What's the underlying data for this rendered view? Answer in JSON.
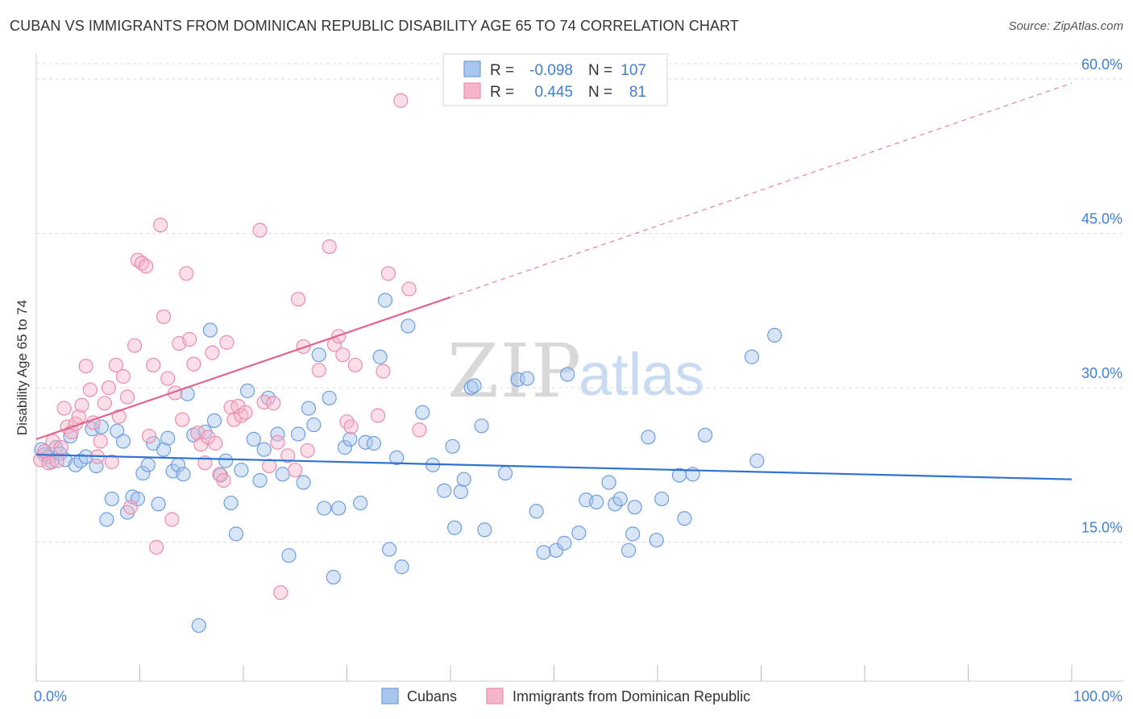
{
  "header": {
    "title": "CUBAN VS IMMIGRANTS FROM DOMINICAN REPUBLIC DISABILITY AGE 65 TO 74 CORRELATION CHART",
    "source": "Source: ZipAtlas.com"
  },
  "watermark": {
    "zip": "ZIP",
    "atlas": "atlas"
  },
  "colors": {
    "blue_fill": "#a9c6ee",
    "blue_stroke": "#6d9ee0",
    "blue_line": "#2e73d2",
    "pink_fill": "#f6b6ca",
    "pink_stroke": "#ec8cab",
    "pink_line": "#e0648f",
    "axis_text": "#3f7fd6",
    "grid": "#dcdcdc"
  },
  "legend": {
    "rows": [
      {
        "r_label": "R =",
        "r_value": "-0.098",
        "n_label": "N =",
        "n_value": "107"
      },
      {
        "r_label": "R =",
        "r_value": "0.445",
        "n_label": "N =",
        "n_value": "81"
      }
    ]
  },
  "bottom_legend": [
    "Cubans",
    "Immigrants from Dominican Republic"
  ],
  "chart_data": {
    "type": "scatter",
    "xlabel": "",
    "ylabel": "Disability Age 65 to 74",
    "xlim": [
      0,
      100
    ],
    "ylim": [
      1.5,
      62.5
    ],
    "x_tick_labels": [
      {
        "value": 0,
        "label": "0.0%"
      },
      {
        "value": 100,
        "label": "100.0%"
      }
    ],
    "y_tick_labels": [
      {
        "value": 15,
        "label": "15.0%"
      },
      {
        "value": 30,
        "label": "30.0%"
      },
      {
        "value": 45,
        "label": "45.0%"
      },
      {
        "value": 60,
        "label": "60.0%"
      }
    ],
    "grid": true,
    "legend_position": "top-center",
    "series": [
      {
        "name": "Cubans",
        "trend": {
          "x": [
            0,
            100
          ],
          "y": [
            23.5,
            21.1
          ]
        },
        "points": [
          [
            0.5,
            24.0
          ],
          [
            0.8,
            23.5
          ],
          [
            1.2,
            23.3
          ],
          [
            1.5,
            22.8
          ],
          [
            1.9,
            24.2
          ],
          [
            2.3,
            23.6
          ],
          [
            2.8,
            23.0
          ],
          [
            3.3,
            25.3
          ],
          [
            3.8,
            22.5
          ],
          [
            4.3,
            22.9
          ],
          [
            4.8,
            23.3
          ],
          [
            5.4,
            26.0
          ],
          [
            5.8,
            22.4
          ],
          [
            6.3,
            26.2
          ],
          [
            6.8,
            17.2
          ],
          [
            7.3,
            19.2
          ],
          [
            7.8,
            25.8
          ],
          [
            8.4,
            24.8
          ],
          [
            8.8,
            17.9
          ],
          [
            9.3,
            19.4
          ],
          [
            9.8,
            19.2
          ],
          [
            10.3,
            21.7
          ],
          [
            10.8,
            22.5
          ],
          [
            11.3,
            24.6
          ],
          [
            11.8,
            18.7
          ],
          [
            12.3,
            24.0
          ],
          [
            12.7,
            25.1
          ],
          [
            13.2,
            21.9
          ],
          [
            13.7,
            22.5
          ],
          [
            14.2,
            21.6
          ],
          [
            14.6,
            29.4
          ],
          [
            15.2,
            25.4
          ],
          [
            15.7,
            6.9
          ],
          [
            16.3,
            25.7
          ],
          [
            16.8,
            35.6
          ],
          [
            17.2,
            26.8
          ],
          [
            17.8,
            21.5
          ],
          [
            18.3,
            22.9
          ],
          [
            18.8,
            18.8
          ],
          [
            19.3,
            15.8
          ],
          [
            19.8,
            22.0
          ],
          [
            20.4,
            29.7
          ],
          [
            21.0,
            25.0
          ],
          [
            21.6,
            21.0
          ],
          [
            22.0,
            24.0
          ],
          [
            22.4,
            29.0
          ],
          [
            23.3,
            25.5
          ],
          [
            23.8,
            21.6
          ],
          [
            24.4,
            13.7
          ],
          [
            25.3,
            25.5
          ],
          [
            25.8,
            20.8
          ],
          [
            26.3,
            28.0
          ],
          [
            26.8,
            26.4
          ],
          [
            27.3,
            33.2
          ],
          [
            27.8,
            18.3
          ],
          [
            28.3,
            29.0
          ],
          [
            28.7,
            11.6
          ],
          [
            29.2,
            18.3
          ],
          [
            29.8,
            24.2
          ],
          [
            30.3,
            25.0
          ],
          [
            31.3,
            18.8
          ],
          [
            31.8,
            24.7
          ],
          [
            32.6,
            24.6
          ],
          [
            33.2,
            33.0
          ],
          [
            33.7,
            38.5
          ],
          [
            34.1,
            14.3
          ],
          [
            34.8,
            23.2
          ],
          [
            35.3,
            12.6
          ],
          [
            35.9,
            36.0
          ],
          [
            37.3,
            27.6
          ],
          [
            38.3,
            22.5
          ],
          [
            39.4,
            20.0
          ],
          [
            40.2,
            24.3
          ],
          [
            40.4,
            16.4
          ],
          [
            41.0,
            19.9
          ],
          [
            41.3,
            21.1
          ],
          [
            42.0,
            30.0
          ],
          [
            42.3,
            30.2
          ],
          [
            43.0,
            26.3
          ],
          [
            43.3,
            16.2
          ],
          [
            45.3,
            21.7
          ],
          [
            46.5,
            30.8
          ],
          [
            47.4,
            30.9
          ],
          [
            48.3,
            18.0
          ],
          [
            49.0,
            14.0
          ],
          [
            50.2,
            14.2
          ],
          [
            51.0,
            14.9
          ],
          [
            51.3,
            31.3
          ],
          [
            52.4,
            15.9
          ],
          [
            53.1,
            19.1
          ],
          [
            54.1,
            18.9
          ],
          [
            55.3,
            20.8
          ],
          [
            55.9,
            18.7
          ],
          [
            56.4,
            19.2
          ],
          [
            57.2,
            14.2
          ],
          [
            57.6,
            15.8
          ],
          [
            57.8,
            18.4
          ],
          [
            59.1,
            25.2
          ],
          [
            59.9,
            15.2
          ],
          [
            60.4,
            19.2
          ],
          [
            62.1,
            21.5
          ],
          [
            62.6,
            17.3
          ],
          [
            63.4,
            21.6
          ],
          [
            64.6,
            25.4
          ],
          [
            69.1,
            33.0
          ],
          [
            69.6,
            22.9
          ],
          [
            71.3,
            35.1
          ]
        ]
      },
      {
        "name": "Immigrants from Dominican Republic",
        "trend": {
          "x": [
            0,
            40
          ],
          "y": [
            25.0,
            38.8
          ]
        },
        "trend_extension": {
          "x": [
            40,
            100
          ],
          "y": [
            38.8,
            59.6
          ]
        },
        "points": [
          [
            0.4,
            23.0
          ],
          [
            0.8,
            23.8
          ],
          [
            1.2,
            22.7
          ],
          [
            1.6,
            24.8
          ],
          [
            2.0,
            22.9
          ],
          [
            2.4,
            24.2
          ],
          [
            2.7,
            28.0
          ],
          [
            3.0,
            26.2
          ],
          [
            3.4,
            25.7
          ],
          [
            3.8,
            26.5
          ],
          [
            4.1,
            27.2
          ],
          [
            4.4,
            28.3
          ],
          [
            4.8,
            32.1
          ],
          [
            5.2,
            29.8
          ],
          [
            5.5,
            26.6
          ],
          [
            5.9,
            23.3
          ],
          [
            6.2,
            24.8
          ],
          [
            6.6,
            28.5
          ],
          [
            7.0,
            30.0
          ],
          [
            7.3,
            22.8
          ],
          [
            7.7,
            32.2
          ],
          [
            8.0,
            27.2
          ],
          [
            8.4,
            31.1
          ],
          [
            8.8,
            29.1
          ],
          [
            9.1,
            18.4
          ],
          [
            9.5,
            34.1
          ],
          [
            9.8,
            42.4
          ],
          [
            10.2,
            42.1
          ],
          [
            10.6,
            41.8
          ],
          [
            10.9,
            25.3
          ],
          [
            11.3,
            32.2
          ],
          [
            11.6,
            14.5
          ],
          [
            12.0,
            45.8
          ],
          [
            12.3,
            36.9
          ],
          [
            12.7,
            30.9
          ],
          [
            13.1,
            17.2
          ],
          [
            13.4,
            29.5
          ],
          [
            13.8,
            34.3
          ],
          [
            14.1,
            26.9
          ],
          [
            14.5,
            41.1
          ],
          [
            14.8,
            34.7
          ],
          [
            15.2,
            32.3
          ],
          [
            15.6,
            25.6
          ],
          [
            15.9,
            24.5
          ],
          [
            16.3,
            22.7
          ],
          [
            16.6,
            25.2
          ],
          [
            17.0,
            33.4
          ],
          [
            17.3,
            24.6
          ],
          [
            17.7,
            21.6
          ],
          [
            18.1,
            21.0
          ],
          [
            18.4,
            34.4
          ],
          [
            18.8,
            28.1
          ],
          [
            19.1,
            26.9
          ],
          [
            19.5,
            28.2
          ],
          [
            19.8,
            27.3
          ],
          [
            20.2,
            27.6
          ],
          [
            21.6,
            45.3
          ],
          [
            22.0,
            28.6
          ],
          [
            22.5,
            22.4
          ],
          [
            22.9,
            28.5
          ],
          [
            23.3,
            24.7
          ],
          [
            23.6,
            10.1
          ],
          [
            24.3,
            23.4
          ],
          [
            25.0,
            22.0
          ],
          [
            25.3,
            38.6
          ],
          [
            25.8,
            34.0
          ],
          [
            26.2,
            23.9
          ],
          [
            27.3,
            31.7
          ],
          [
            28.3,
            43.7
          ],
          [
            28.8,
            34.2
          ],
          [
            29.2,
            35.0
          ],
          [
            29.6,
            33.2
          ],
          [
            30.0,
            26.7
          ],
          [
            30.4,
            26.2
          ],
          [
            30.8,
            32.2
          ],
          [
            33.0,
            27.3
          ],
          [
            33.5,
            31.6
          ],
          [
            34.0,
            41.1
          ],
          [
            36.0,
            39.6
          ],
          [
            37.0,
            25.9
          ],
          [
            35.2,
            57.9
          ]
        ]
      }
    ]
  }
}
